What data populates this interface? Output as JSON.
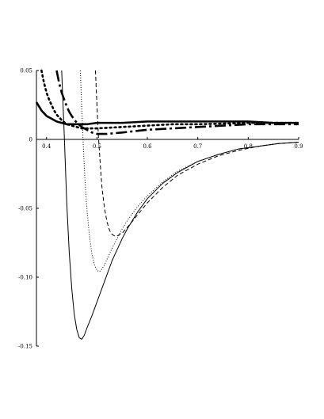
{
  "chart_data": {
    "type": "line",
    "title": "",
    "xlabel": "",
    "ylabel": "",
    "xlim": [
      0.38,
      0.9
    ],
    "ylim": [
      -0.15,
      0.05
    ],
    "grid": false,
    "legend": "none",
    "x_ticks": [
      "0.4",
      "0.5",
      "0.6",
      "0.7",
      "0.8",
      "0.9"
    ],
    "x_tick_values": [
      0.4,
      0.5,
      0.6,
      0.7,
      0.8,
      0.9
    ],
    "y_ticks": [
      "0.05",
      "0",
      "-0.05",
      "-0.10",
      "-0.15"
    ],
    "y_tick_values": [
      0.05,
      0,
      -0.05,
      -0.1,
      -0.15
    ],
    "series": [
      {
        "style": "thin-solid",
        "x": [
          0.43,
          0.435,
          0.44,
          0.445,
          0.45,
          0.455,
          0.46,
          0.465,
          0.47,
          0.475,
          0.48,
          0.49,
          0.5,
          0.51,
          0.52,
          0.53,
          0.54,
          0.55,
          0.56,
          0.58,
          0.6,
          0.63,
          0.66,
          0.7,
          0.74,
          0.78,
          0.82,
          0.86,
          0.9
        ],
        "y": [
          0.05,
          0.005,
          -0.045,
          -0.082,
          -0.108,
          -0.127,
          -0.138,
          -0.144,
          -0.145,
          -0.142,
          -0.137,
          -0.128,
          -0.118,
          -0.108,
          -0.098,
          -0.088,
          -0.08,
          -0.072,
          -0.065,
          -0.053,
          -0.043,
          -0.032,
          -0.024,
          -0.016,
          -0.011,
          -0.007,
          -0.005,
          -0.003,
          -0.002
        ]
      },
      {
        "style": "dotted",
        "x": [
          0.467,
          0.47,
          0.473,
          0.476,
          0.48,
          0.485,
          0.49,
          0.495,
          0.5,
          0.505,
          0.51,
          0.515,
          0.52,
          0.53,
          0.54,
          0.55,
          0.56,
          0.58,
          0.6,
          0.63,
          0.66,
          0.7,
          0.74,
          0.78,
          0.82,
          0.86,
          0.9
        ],
        "y": [
          0.05,
          0.022,
          -0.005,
          -0.028,
          -0.05,
          -0.07,
          -0.083,
          -0.091,
          -0.095,
          -0.096,
          -0.094,
          -0.091,
          -0.087,
          -0.079,
          -0.072,
          -0.065,
          -0.059,
          -0.049,
          -0.041,
          -0.031,
          -0.023,
          -0.016,
          -0.011,
          -0.007,
          -0.005,
          -0.003,
          -0.002
        ]
      },
      {
        "style": "thin-dashed",
        "x": [
          0.497,
          0.5,
          0.503,
          0.507,
          0.51,
          0.515,
          0.52,
          0.525,
          0.53,
          0.535,
          0.54,
          0.545,
          0.55,
          0.56,
          0.58,
          0.6,
          0.63,
          0.66,
          0.7,
          0.74,
          0.78,
          0.82,
          0.86,
          0.9
        ],
        "y": [
          0.05,
          0.025,
          0.002,
          -0.02,
          -0.035,
          -0.05,
          -0.06,
          -0.066,
          -0.069,
          -0.07,
          -0.07,
          -0.069,
          -0.068,
          -0.064,
          -0.055,
          -0.046,
          -0.035,
          -0.026,
          -0.018,
          -0.012,
          -0.008,
          -0.005,
          -0.003,
          -0.002
        ]
      },
      {
        "style": "thick-solid",
        "x": [
          0.38,
          0.39,
          0.4,
          0.41,
          0.42,
          0.43,
          0.44,
          0.45,
          0.46,
          0.48,
          0.5,
          0.55,
          0.6,
          0.65,
          0.7,
          0.75,
          0.8,
          0.85,
          0.9
        ],
        "y": [
          0.027,
          0.021,
          0.017,
          0.015,
          0.013,
          0.012,
          0.011,
          0.011,
          0.011,
          0.011,
          0.012,
          0.012,
          0.013,
          0.013,
          0.013,
          0.013,
          0.013,
          0.012,
          0.012
        ]
      },
      {
        "style": "thick-dotted",
        "x": [
          0.39,
          0.395,
          0.4,
          0.405,
          0.41,
          0.415,
          0.42,
          0.425,
          0.43,
          0.44,
          0.45,
          0.46,
          0.47,
          0.48,
          0.5,
          0.55,
          0.6,
          0.65,
          0.7,
          0.8,
          0.9
        ],
        "y": [
          0.05,
          0.041,
          0.034,
          0.029,
          0.025,
          0.021,
          0.018,
          0.016,
          0.014,
          0.011,
          0.01,
          0.009,
          0.008,
          0.008,
          0.008,
          0.009,
          0.01,
          0.011,
          0.011,
          0.012,
          0.012
        ]
      },
      {
        "style": "thick-dashed",
        "x": [
          0.42,
          0.425,
          0.43,
          0.435,
          0.44,
          0.445,
          0.45,
          0.46,
          0.47,
          0.48,
          0.49,
          0.5,
          0.51,
          0.52,
          0.55,
          0.6,
          0.65,
          0.7,
          0.75,
          0.8,
          0.85,
          0.9
        ],
        "y": [
          0.05,
          0.041,
          0.034,
          0.029,
          0.024,
          0.02,
          0.017,
          0.012,
          0.009,
          0.007,
          0.005,
          0.004,
          0.004,
          0.004,
          0.005,
          0.007,
          0.008,
          0.009,
          0.01,
          0.011,
          0.011,
          0.011
        ]
      }
    ]
  }
}
